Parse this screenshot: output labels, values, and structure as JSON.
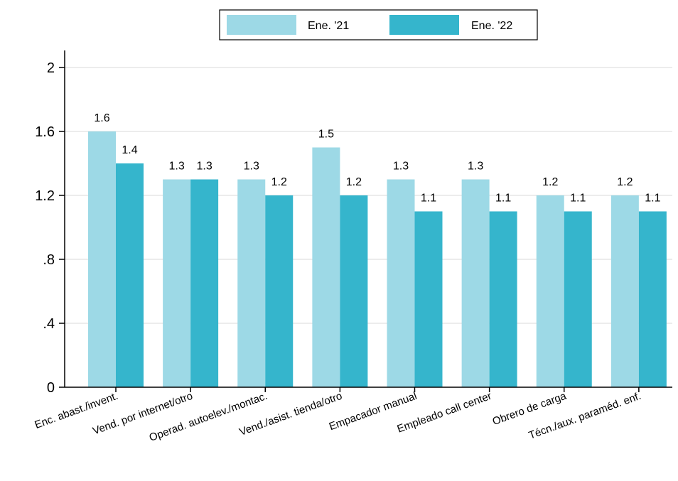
{
  "chart_data": {
    "type": "bar",
    "categories": [
      "Enc. abast./invent.",
      "Vend. por internet/otro",
      "Operad. autoelev./montac.",
      "Vend./asist. tienda/otro",
      "Empacador manual",
      "Empleado call center",
      "Obrero de carga",
      "Técn./aux. paraméd. enf."
    ],
    "series": [
      {
        "name": "Ene. '21",
        "color": "#9dd9e6",
        "values": [
          1.6,
          1.3,
          1.3,
          1.5,
          1.3,
          1.3,
          1.2,
          1.2
        ]
      },
      {
        "name": "Ene. '22",
        "color": "#35b5cc",
        "values": [
          1.4,
          1.3,
          1.2,
          1.2,
          1.1,
          1.1,
          1.1,
          1.1
        ]
      }
    ],
    "data_labels": [
      [
        "1.6",
        "1.3",
        "1.3",
        "1.5",
        "1.3",
        "1.3",
        "1.2",
        "1.2"
      ],
      [
        "1.4",
        "1.3",
        "1.2",
        "1.2",
        "1.1",
        "1.1",
        "1.1",
        "1.1"
      ]
    ],
    "ylim": [
      0,
      2.2
    ],
    "yticks": [
      0,
      0.4,
      0.8,
      1.2,
      1.6,
      2
    ],
    "ytick_labels": [
      "0",
      ".4",
      ".8",
      "1.2",
      "1.6",
      "2"
    ],
    "gridlines": true,
    "legend_position": "top-center",
    "title": "",
    "xlabel": "",
    "ylabel": ""
  }
}
